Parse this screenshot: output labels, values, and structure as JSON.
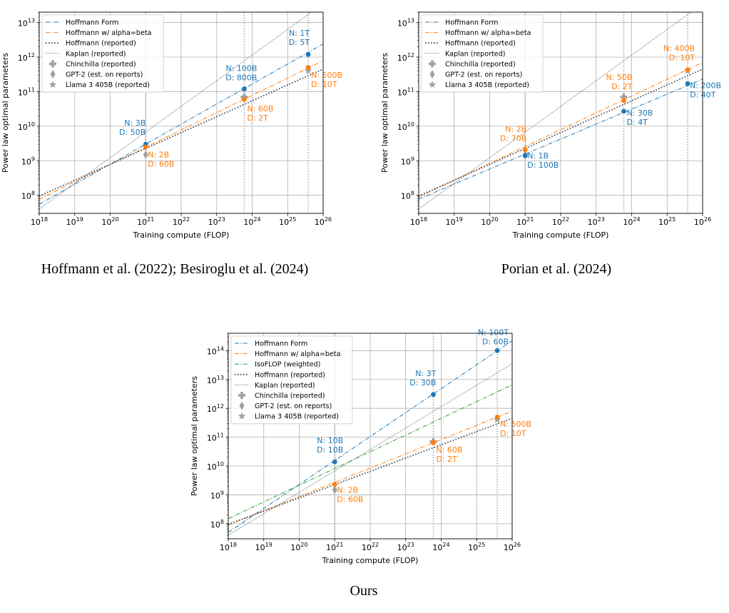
{
  "figure": {
    "captions": [
      "Hoffmann et al. (2022); Besiroglu et al. (2024)",
      "Porian et al. (2024)",
      "Ours"
    ]
  },
  "colors": {
    "blue": "#1f77b4",
    "orange": "#ff7f0e",
    "green": "#2ca02c",
    "dark": "#444a55",
    "gray": "#a0a0a0"
  },
  "chart_data": [
    {
      "type": "line",
      "xlabel": "Training compute (FLOP)",
      "ylabel": "Power law optimal parameters",
      "xscale": "log",
      "yscale": "log",
      "xlim": [
        1e+18,
        1e+26
      ],
      "ylim": [
        30000000.0,
        20000000000000.0
      ],
      "xticks": [
        "10^18",
        "10^19",
        "10^20",
        "10^21",
        "10^22",
        "10^23",
        "10^24",
        "10^25",
        "10^26"
      ],
      "yticks": [
        "10^8",
        "10^9",
        "10^10",
        "10^11",
        "10^12",
        "10^13"
      ],
      "grid": true,
      "legend_position": "top-left",
      "vlines": [
        1e+21,
        6e+23,
        3.8e+25
      ],
      "series": [
        {
          "name": "Hoffmann Form",
          "color": "#1f77b4",
          "style": "dashdot",
          "x": [
            1e+18,
            1e+26
          ],
          "y": [
            55000000.0,
            2400000000000.0
          ]
        },
        {
          "name": "Hoffmann w/ alpha=beta",
          "color": "#ff7f0e",
          "style": "dashdot",
          "x": [
            1e+18,
            1e+26
          ],
          "y": [
            78000000.0,
            780000000000.0
          ]
        },
        {
          "name": "Hoffmann (reported)",
          "color": "#444a55",
          "style": "dotted",
          "x": [
            1e+18,
            1e+26
          ],
          "y": [
            95000000.0,
            450000000000.0
          ]
        },
        {
          "name": "Kaplan (reported)",
          "color": "#444a55",
          "style": "finedot",
          "x": [
            1e+18,
            1e+26
          ],
          "y": [
            40000000.0,
            35000000000000.0
          ]
        }
      ],
      "legend_markers": [
        {
          "name": "Chinchilla (reported)",
          "symbol": "plus"
        },
        {
          "name": "GPT-2 (est. on reports)",
          "symbol": "diamond"
        },
        {
          "name": "Llama 3 405B (reported)",
          "symbol": "star"
        }
      ],
      "points": [
        {
          "x": 1e+21,
          "y": 3000000000.0,
          "color": "#1f77b4"
        },
        {
          "x": 6e+23,
          "y": 120000000000.0,
          "color": "#1f77b4"
        },
        {
          "x": 3.8e+25,
          "y": 1200000000000.0,
          "color": "#1f77b4"
        },
        {
          "x": 1e+21,
          "y": 2500000000.0,
          "color": "#ff7f0e"
        },
        {
          "x": 6e+23,
          "y": 60000000000.0,
          "color": "#ff7f0e"
        },
        {
          "x": 3.8e+25,
          "y": 500000000000.0,
          "color": "#ff7f0e"
        }
      ],
      "ref_points": [
        {
          "x": 6e+23,
          "y": 70000000000.0,
          "symbol": "plus"
        },
        {
          "x": 1e+21,
          "y": 1500000000.0,
          "symbol": "diamond"
        },
        {
          "x": 3.8e+25,
          "y": 405000000000.0,
          "symbol": "star"
        }
      ],
      "annotations": [
        {
          "text": [
            "N: 3B",
            "D: 50B"
          ],
          "color": "#1f77b4",
          "x": 1e+21,
          "y": 3000000000.0,
          "anchor": "end",
          "dx": 0,
          "dy": -26
        },
        {
          "text": [
            "N: 100B",
            "D: 800B"
          ],
          "color": "#1f77b4",
          "x": 6e+23,
          "y": 120000000000.0,
          "anchor": "end",
          "dx": 18,
          "dy": -25
        },
        {
          "text": [
            "N: 1T",
            "D: 5T"
          ],
          "color": "#1f77b4",
          "x": 3.8e+25,
          "y": 1200000000000.0,
          "anchor": "end",
          "dx": 2,
          "dy": -26
        },
        {
          "text": [
            "N: 2B",
            "D: 60B"
          ],
          "color": "#ff7f0e",
          "x": 1e+21,
          "y": 1500000000.0,
          "anchor": "start",
          "dx": 3,
          "dy": 4
        },
        {
          "text": [
            "N: 60B",
            "D: 2T"
          ],
          "color": "#ff7f0e",
          "x": 6e+23,
          "y": 60000000000.0,
          "anchor": "start",
          "dx": 4,
          "dy": 17
        },
        {
          "text": [
            "N: 500B",
            "D: 10T"
          ],
          "color": "#ff7f0e",
          "x": 3.8e+25,
          "y": 405000000000.0,
          "anchor": "start",
          "dx": 4,
          "dy": 10
        }
      ]
    },
    {
      "type": "line",
      "xlabel": "Training compute (FLOP)",
      "ylabel": "Power law optimal parameters",
      "xscale": "log",
      "yscale": "log",
      "xlim": [
        1e+18,
        1e+26
      ],
      "ylim": [
        30000000.0,
        20000000000000.0
      ],
      "xticks": [
        "10^18",
        "10^19",
        "10^20",
        "10^21",
        "10^22",
        "10^23",
        "10^24",
        "10^25",
        "10^26"
      ],
      "yticks": [
        "10^8",
        "10^9",
        "10^10",
        "10^11",
        "10^12",
        "10^13"
      ],
      "grid": true,
      "legend_position": "top-left",
      "vlines": [
        1e+21,
        6e+23,
        3.8e+25
      ],
      "series": [
        {
          "name": "Hoffmann Form",
          "color": "#1f77b4",
          "style": "dashdot",
          "x": [
            1e+18,
            1e+26
          ],
          "y": [
            78000000.0,
            230000000000.0
          ]
        },
        {
          "name": "Hoffmann w/ alpha=beta",
          "color": "#ff7f0e",
          "style": "dashdot",
          "x": [
            1e+18,
            1e+26
          ],
          "y": [
            90000000.0,
            700000000000.0
          ]
        },
        {
          "name": "Hoffmann (reported)",
          "color": "#444a55",
          "style": "dotted",
          "x": [
            1e+18,
            1e+26
          ],
          "y": [
            95000000.0,
            450000000000.0
          ]
        },
        {
          "name": "Kaplan (reported)",
          "color": "#444a55",
          "style": "finedot",
          "x": [
            1e+18,
            1e+26
          ],
          "y": [
            40000000.0,
            35000000000000.0
          ]
        }
      ],
      "legend_markers": [
        {
          "name": "Chinchilla (reported)",
          "symbol": "plus"
        },
        {
          "name": "GPT-2 (est. on reports)",
          "symbol": "diamond"
        },
        {
          "name": "Llama 3 405B (reported)",
          "symbol": "star"
        }
      ],
      "points": [
        {
          "x": 1e+21,
          "y": 1400000000.0,
          "color": "#1f77b4"
        },
        {
          "x": 6e+23,
          "y": 27000000000.0,
          "color": "#1f77b4"
        },
        {
          "x": 3.8e+25,
          "y": 170000000000.0,
          "color": "#1f77b4"
        },
        {
          "x": 1e+21,
          "y": 2100000000.0,
          "color": "#ff7f0e"
        },
        {
          "x": 6e+23,
          "y": 55000000000.0,
          "color": "#ff7f0e"
        },
        {
          "x": 3.8e+25,
          "y": 430000000000.0,
          "color": "#ff7f0e"
        }
      ],
      "ref_points": [
        {
          "x": 6e+23,
          "y": 70000000000.0,
          "symbol": "plus"
        },
        {
          "x": 1e+21,
          "y": 1500000000.0,
          "symbol": "diamond"
        },
        {
          "x": 3.8e+25,
          "y": 405000000000.0,
          "symbol": "star"
        }
      ],
      "annotations": [
        {
          "text": [
            "N: 2B",
            "D: 70B"
          ],
          "color": "#ff7f0e",
          "x": 1e+21,
          "y": 2100000000.0,
          "anchor": "end",
          "dx": 2,
          "dy": -25
        },
        {
          "text": [
            "N: 50B",
            "D: 2T"
          ],
          "color": "#ff7f0e",
          "x": 6e+23,
          "y": 70000000000.0,
          "anchor": "end",
          "dx": 12,
          "dy": -24
        },
        {
          "text": [
            "N: 400B",
            "D: 10T"
          ],
          "color": "#ff7f0e",
          "x": 3.8e+25,
          "y": 430000000000.0,
          "anchor": "end",
          "dx": 10,
          "dy": -26
        },
        {
          "text": [
            "N: 1B",
            "D: 100B"
          ],
          "color": "#1f77b4",
          "x": 1e+21,
          "y": 1400000000.0,
          "anchor": "start",
          "dx": 3,
          "dy": 4
        },
        {
          "text": [
            "N: 30B",
            "D: 4T"
          ],
          "color": "#1f77b4",
          "x": 6e+23,
          "y": 27000000000.0,
          "anchor": "start",
          "dx": 4,
          "dy": 6
        },
        {
          "text": [
            "N: 200B",
            "D: 40T"
          ],
          "color": "#1f77b4",
          "x": 3.8e+25,
          "y": 170000000000.0,
          "anchor": "start",
          "dx": 3,
          "dy": 6
        }
      ]
    },
    {
      "type": "line",
      "xlabel": "Training compute (FLOP)",
      "ylabel": "Power law optimal parameters",
      "xscale": "log",
      "yscale": "log",
      "xlim": [
        1e+18,
        1e+26
      ],
      "ylim": [
        30000000.0,
        400000000000000.0
      ],
      "xticks": [
        "10^18",
        "10^19",
        "10^20",
        "10^21",
        "10^22",
        "10^23",
        "10^24",
        "10^25",
        "10^26"
      ],
      "yticks": [
        "10^8",
        "10^9",
        "10^10",
        "10^11",
        "10^12",
        "10^13",
        "10^14"
      ],
      "grid": true,
      "legend_position": "top-left",
      "vlines": [
        1e+21,
        6e+23,
        3.8e+25
      ],
      "series": [
        {
          "name": "Hoffmann Form",
          "color": "#1f77b4",
          "style": "dashdot",
          "x": [
            1e+18,
            1e+26
          ],
          "y": [
            50000000.0,
            220000000000000.0
          ]
        },
        {
          "name": "Hoffmann w/ alpha=beta",
          "color": "#ff7f0e",
          "style": "dashdot",
          "x": [
            1e+18,
            1e+26
          ],
          "y": [
            90000000.0,
            800000000000.0
          ]
        },
        {
          "name": "IsoFLOP (weighted)",
          "color": "#2ca02c",
          "style": "dashdot",
          "x": [
            1e+18,
            1e+26
          ],
          "y": [
            150000000.0,
            6500000000000.0
          ]
        },
        {
          "name": "Hoffmann (reported)",
          "color": "#444a55",
          "style": "dotted",
          "x": [
            1e+18,
            1e+26
          ],
          "y": [
            95000000.0,
            450000000000.0
          ]
        },
        {
          "name": "Kaplan (reported)",
          "color": "#444a55",
          "style": "finedot",
          "x": [
            1e+18,
            1e+26
          ],
          "y": [
            40000000.0,
            35000000000000.0
          ]
        }
      ],
      "legend_markers": [
        {
          "name": "Chinchilla (reported)",
          "symbol": "plus"
        },
        {
          "name": "GPT-2 (est. on reports)",
          "symbol": "diamond"
        },
        {
          "name": "Llama 3 405B (reported)",
          "symbol": "star"
        }
      ],
      "points": [
        {
          "x": 1e+21,
          "y": 14000000000.0,
          "color": "#1f77b4"
        },
        {
          "x": 6e+23,
          "y": 3000000000000.0,
          "color": "#1f77b4"
        },
        {
          "x": 3.8e+25,
          "y": 100000000000000.0,
          "color": "#1f77b4"
        },
        {
          "x": 1e+21,
          "y": 2300000000.0,
          "color": "#ff7f0e"
        },
        {
          "x": 6e+23,
          "y": 65000000000.0,
          "color": "#ff7f0e"
        },
        {
          "x": 3.8e+25,
          "y": 500000000000.0,
          "color": "#ff7f0e"
        }
      ],
      "ref_points": [
        {
          "x": 6e+23,
          "y": 70000000000.0,
          "symbol": "plus"
        },
        {
          "x": 1e+21,
          "y": 1500000000.0,
          "symbol": "diamond"
        },
        {
          "x": 3.8e+25,
          "y": 405000000000.0,
          "symbol": "star"
        }
      ],
      "annotations": [
        {
          "text": [
            "N: 10B",
            "D: 10B"
          ],
          "color": "#1f77b4",
          "x": 1e+21,
          "y": 14000000000.0,
          "anchor": "end",
          "dx": 12,
          "dy": -26
        },
        {
          "text": [
            "N: 3T",
            "D: 30B"
          ],
          "color": "#1f77b4",
          "x": 6e+23,
          "y": 3000000000000.0,
          "anchor": "end",
          "dx": 4,
          "dy": -26
        },
        {
          "text": [
            "N: 100T",
            "D: 60B"
          ],
          "color": "#1f77b4",
          "x": 3.8e+25,
          "y": 100000000000000.0,
          "anchor": "end",
          "dx": 16,
          "dy": -22
        },
        {
          "text": [
            "N: 2B",
            "D: 60B"
          ],
          "color": "#ff7f0e",
          "x": 1e+21,
          "y": 1500000000.0,
          "anchor": "start",
          "dx": 3,
          "dy": 4
        },
        {
          "text": [
            "N: 60B",
            "D: 2T"
          ],
          "color": "#ff7f0e",
          "x": 6e+23,
          "y": 65000000000.0,
          "anchor": "start",
          "dx": 4,
          "dy": 14
        },
        {
          "text": [
            "N: 500B",
            "D: 10T"
          ],
          "color": "#ff7f0e",
          "x": 3.8e+25,
          "y": 405000000000.0,
          "anchor": "start",
          "dx": 4,
          "dy": 10
        }
      ]
    }
  ]
}
